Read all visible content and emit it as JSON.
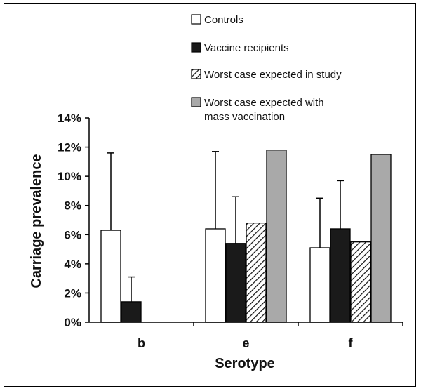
{
  "chart_data": {
    "type": "bar",
    "xlabel": "Serotype",
    "ylabel": "Carriage prevalence",
    "ylim": [
      0,
      14
    ],
    "y_ticks": [
      "0%",
      "2%",
      "4%",
      "6%",
      "8%",
      "10%",
      "12%",
      "14%"
    ],
    "categories": [
      "b",
      "e",
      "f"
    ],
    "legend_position": "top-right",
    "series": [
      {
        "name": "Controls",
        "values": [
          6.3,
          6.4,
          5.1
        ],
        "error_upper": [
          11.6,
          11.7,
          8.5
        ],
        "color": "#ffffff",
        "pattern": "none"
      },
      {
        "name": "Vaccine recipients",
        "values": [
          1.4,
          5.4,
          6.4
        ],
        "error_upper": [
          3.1,
          8.6,
          9.7
        ],
        "color": "#1a1a1a",
        "pattern": "none"
      },
      {
        "name": "Worst case expected in study",
        "values": [
          null,
          6.8,
          5.5
        ],
        "error_upper": [
          null,
          null,
          null
        ],
        "color": "#ffffff",
        "pattern": "hatch"
      },
      {
        "name": "Worst case expected with mass vaccination",
        "values": [
          null,
          11.8,
          11.5
        ],
        "error_upper": [
          null,
          null,
          null
        ],
        "color": "#a9a9a9",
        "pattern": "none"
      }
    ],
    "legend_entries": [
      {
        "lines": [
          "Controls"
        ]
      },
      {
        "lines": [
          "Vaccine recipients"
        ]
      },
      {
        "lines": [
          "Worst case expected in study"
        ]
      },
      {
        "lines": [
          "Worst case expected with",
          "mass vaccination"
        ]
      }
    ]
  }
}
